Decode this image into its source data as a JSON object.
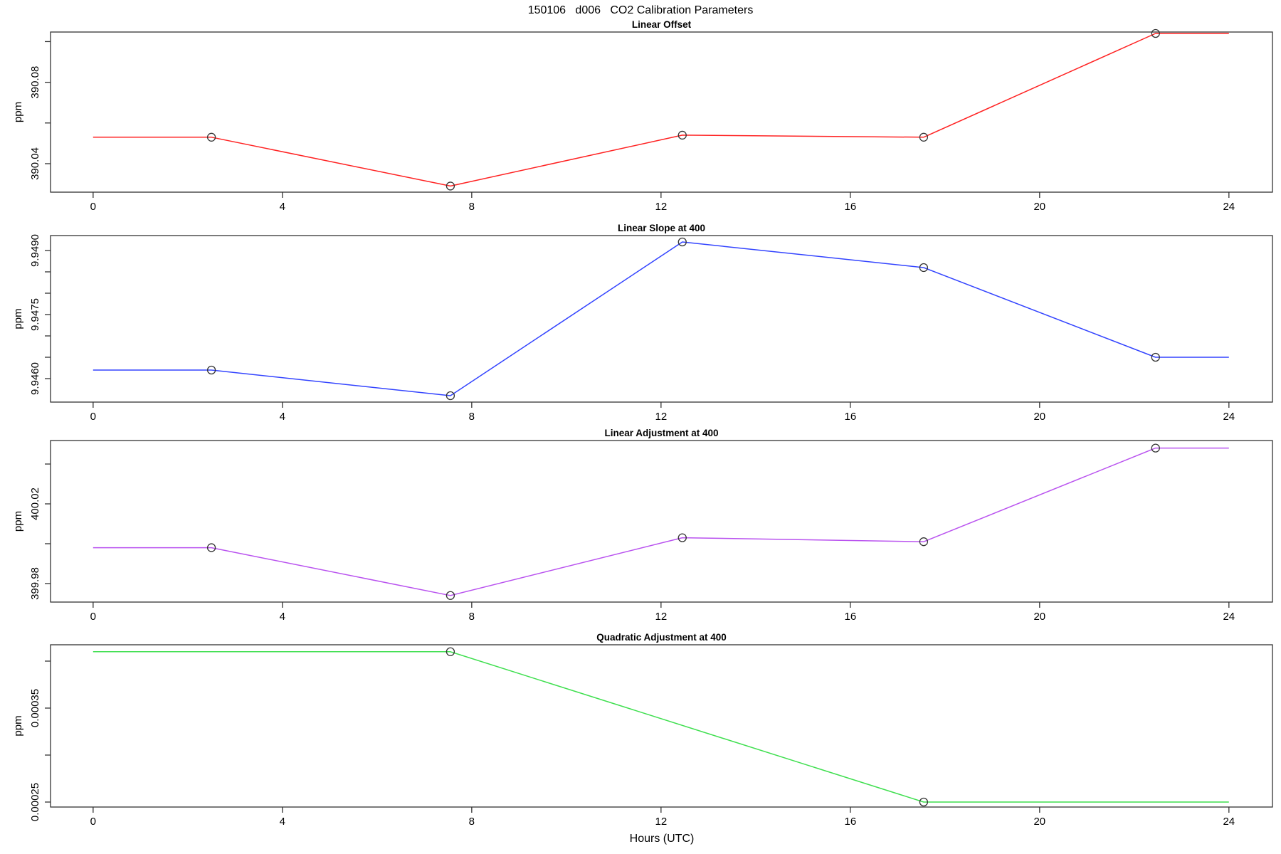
{
  "title": "150106   d006   CO2 Calibration Parameters",
  "x_axis": {
    "label": "Hours (UTC)",
    "ticks": [
      0,
      4,
      8,
      12,
      16,
      20,
      24
    ],
    "lim": [
      -0.9,
      24.92
    ]
  },
  "colors": {
    "linear_offset": "#ff2222",
    "linear_slope": "#3344ff",
    "linear_adjustment": "#b952ef",
    "quadratic_adjustment": "#3fdf4f",
    "axis": "#333333",
    "marker": "#333333",
    "background": "#ffffff"
  },
  "chart_data": [
    {
      "type": "line",
      "title": "Linear Offset",
      "ylabel": "ppm",
      "color": "#ff2222",
      "x": [
        2.5,
        7.55,
        12.45,
        17.55,
        22.45
      ],
      "y": [
        390.053,
        390.029,
        390.054,
        390.053,
        390.104
      ],
      "extend_x": [
        0,
        24
      ],
      "ylim": [
        390.026,
        390.1047
      ],
      "yticks": [
        390.04,
        390.06,
        390.08,
        390.1
      ],
      "ytick_labels": [
        "390.04",
        "",
        "390.08",
        ""
      ],
      "grid": false,
      "marker": "circle"
    },
    {
      "type": "line",
      "title": "Linear Slope at 400",
      "ylabel": "ppm",
      "color": "#3344ff",
      "x": [
        2.5,
        7.55,
        12.45,
        17.55,
        22.45
      ],
      "y": [
        9.9462,
        9.9456,
        9.9492,
        9.9486,
        9.9465
      ],
      "extend_x": [
        0,
        24
      ],
      "ylim": [
        9.94545,
        9.94935
      ],
      "yticks": [
        9.946,
        9.9465,
        9.947,
        9.9475,
        9.948,
        9.9485,
        9.949
      ],
      "ytick_labels": [
        "9.9460",
        "",
        "",
        "9.9475",
        "",
        "",
        "9.9490"
      ],
      "grid": false,
      "marker": "circle"
    },
    {
      "type": "line",
      "title": "Linear Adjustment at 400",
      "ylabel": "ppm",
      "color": "#b952ef",
      "x": [
        2.5,
        7.55,
        12.45,
        17.55,
        22.45
      ],
      "y": [
        399.998,
        399.974,
        400.003,
        400.001,
        400.048
      ],
      "extend_x": [
        0,
        24
      ],
      "ylim": [
        399.9707,
        400.0518
      ],
      "yticks": [
        399.98,
        400.0,
        400.02,
        400.04
      ],
      "ytick_labels": [
        "399.98",
        "",
        "400.02",
        ""
      ],
      "grid": false,
      "marker": "circle"
    },
    {
      "type": "line",
      "title": "Quadratic Adjustment at 400",
      "ylabel": "ppm",
      "color": "#3fdf4f",
      "x": [
        7.55,
        17.55
      ],
      "y": [
        0.00041,
        0.00025
      ],
      "extend_x": [
        0,
        24
      ],
      "ylim": [
        0.0002447,
        0.0004174
      ],
      "yticks": [
        0.00025,
        0.0003,
        0.00035,
        0.0004
      ],
      "ytick_labels": [
        "0.00025",
        "",
        "0.00035",
        ""
      ],
      "grid": false,
      "marker": "circle"
    }
  ]
}
